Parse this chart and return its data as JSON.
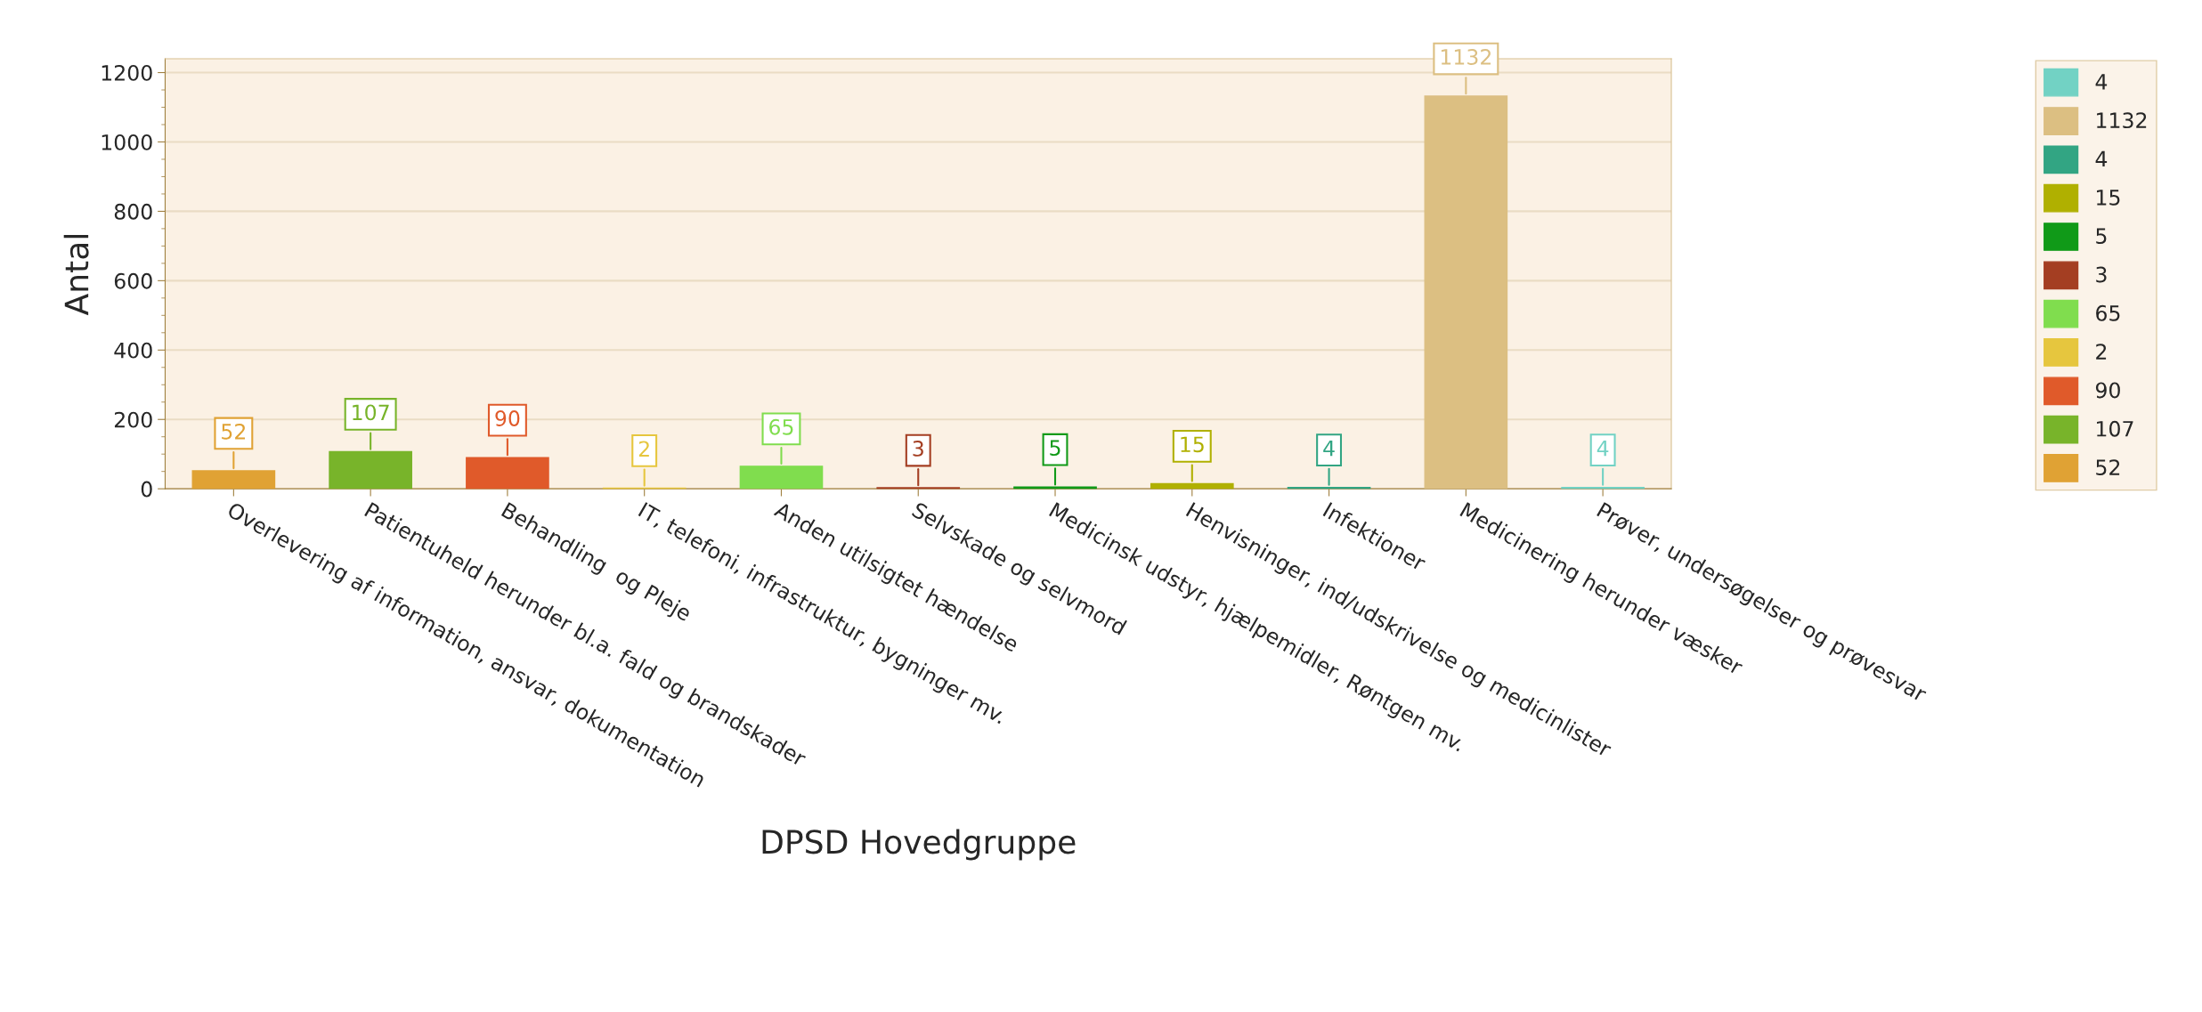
{
  "chart_data": {
    "type": "bar",
    "xlabel": "DPSD Hovedgruppe",
    "ylabel": "Antal",
    "categories": [
      "Overlevering af information, ansvar, dokumentation",
      "Patientuheld herunder bl.a. fald og brandskader",
      "Behandling  og Pleje",
      "IT, telefoni, infrastruktur, bygninger mv.",
      "Anden utilsigtet hændelse",
      "Selvskade og selvmord",
      "Medicinsk udstyr, hjælpemidler, Røntgen mv.",
      "Henvisninger, ind/udskrivelse og medicinlister",
      "Infektioner",
      "Medicinering herunder væsker",
      "Prøver, undersøgelser og prøvesvar"
    ],
    "series": [
      {
        "name": "4",
        "color": "#72d2c4",
        "values": [
          null,
          null,
          null,
          null,
          null,
          null,
          null,
          null,
          null,
          null,
          4
        ]
      },
      {
        "name": "1132",
        "color": "#dcbf82",
        "values": [
          null,
          null,
          null,
          null,
          null,
          null,
          null,
          null,
          null,
          1132,
          null
        ]
      },
      {
        "name": "4",
        "color": "#32a583",
        "values": [
          null,
          null,
          null,
          null,
          null,
          null,
          null,
          null,
          4,
          null,
          null
        ]
      },
      {
        "name": "15",
        "color": "#b0b000",
        "values": [
          null,
          null,
          null,
          null,
          null,
          null,
          null,
          15,
          null,
          null,
          null
        ]
      },
      {
        "name": "5",
        "color": "#109a18",
        "values": [
          null,
          null,
          null,
          null,
          null,
          null,
          5,
          null,
          null,
          null,
          null
        ]
      },
      {
        "name": "3",
        "color": "#a43e22",
        "values": [
          null,
          null,
          null,
          null,
          null,
          3,
          null,
          null,
          null,
          null,
          null
        ]
      },
      {
        "name": "65",
        "color": "#80dd4e",
        "values": [
          null,
          null,
          null,
          null,
          65,
          null,
          null,
          null,
          null,
          null,
          null
        ]
      },
      {
        "name": "2",
        "color": "#e6c63e",
        "values": [
          null,
          null,
          null,
          2,
          null,
          null,
          null,
          null,
          null,
          null,
          null
        ]
      },
      {
        "name": "90",
        "color": "#e05a2a",
        "values": [
          null,
          null,
          90,
          null,
          null,
          null,
          null,
          null,
          null,
          null,
          null
        ]
      },
      {
        "name": "107",
        "color": "#78b42a",
        "values": [
          null,
          107,
          null,
          null,
          null,
          null,
          null,
          null,
          null,
          null,
          null
        ]
      },
      {
        "name": "52",
        "color": "#e0a234",
        "values": [
          52,
          null,
          null,
          null,
          null,
          null,
          null,
          null,
          null,
          null,
          null
        ]
      }
    ],
    "ylim": [
      0,
      1240
    ],
    "yticks": [
      0,
      200,
      400,
      600,
      800,
      1000,
      1200
    ],
    "grid": "y",
    "legend": "right",
    "data_labels": true
  }
}
